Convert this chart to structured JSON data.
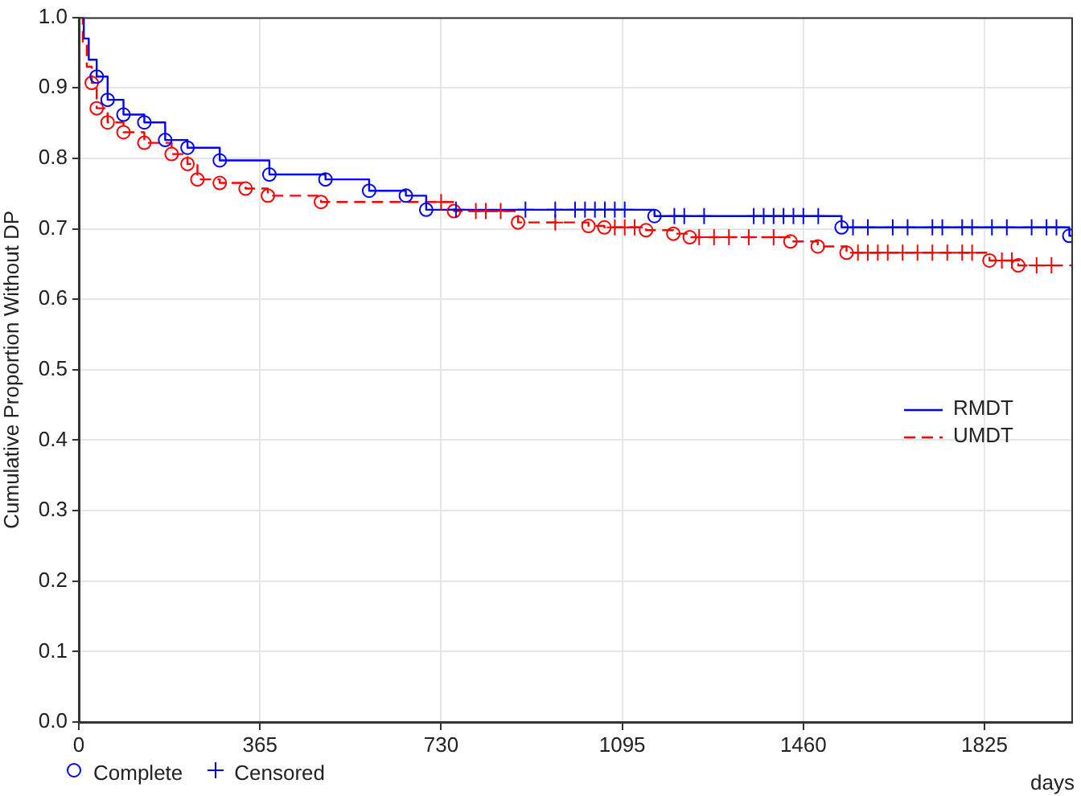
{
  "chart_data": {
    "type": "step",
    "xlabel": "days",
    "ylabel": "Cumulative Proportion Without DP",
    "xlim": [
      0,
      2000
    ],
    "xticks": [
      0,
      365,
      730,
      1095,
      1460,
      1825
    ],
    "ylim": [
      0,
      1
    ],
    "yticks": [
      {
        "value": 0,
        "label": "0.0"
      },
      {
        "value": 0.1,
        "label": "0.1"
      },
      {
        "value": 0.2,
        "label": "0.2"
      },
      {
        "value": 0.3,
        "label": "0.3"
      },
      {
        "value": 0.4,
        "label": "0.4"
      },
      {
        "value": 0.5,
        "label": "0.5"
      },
      {
        "value": 0.6,
        "label": "0.6"
      },
      {
        "value": 0.7,
        "label": "0.7"
      },
      {
        "value": 0.8,
        "label": "0.8"
      },
      {
        "value": 0.9,
        "label": "0.9"
      },
      {
        "value": 1,
        "label": "1.0"
      }
    ],
    "grid": true,
    "legend": "right",
    "series": [
      {
        "name": "RMDT",
        "color": "#0000ff",
        "line_style": "solid",
        "marker": "none",
        "x": [
          0,
          10,
          20,
          36,
          58,
          90,
          132,
          174,
          219,
          284,
          384,
          497,
          585,
          659,
          700,
          1160,
          1537,
          1996,
          2000
        ],
        "values": [
          1,
          0.97,
          0.94,
          0.916,
          0.883,
          0.862,
          0.851,
          0.826,
          0.815,
          0.797,
          0.777,
          0.77,
          0.754,
          0.747,
          0.727,
          0.718,
          0.702,
          0.69,
          0.69
        ]
      },
      {
        "name": "UMDT",
        "color": "#ff0000",
        "line_style": "dashed",
        "marker": "none",
        "x": [
          0,
          8,
          16,
          26,
          36,
          58,
          90,
          132,
          187,
          219,
          239,
          284,
          336,
          381,
          488,
          756,
          885,
          1027,
          1059,
          1143,
          1198,
          1231,
          1434,
          1489,
          1547,
          1835,
          1893,
          2000
        ],
        "values": [
          1,
          0.96,
          0.93,
          0.907,
          0.871,
          0.851,
          0.837,
          0.822,
          0.806,
          0.792,
          0.77,
          0.765,
          0.757,
          0.747,
          0.738,
          0.725,
          0.709,
          0.704,
          0.702,
          0.698,
          0.693,
          0.688,
          0.682,
          0.675,
          0.666,
          0.655,
          0.648,
          0.648
        ]
      },
      {
        "name": "Complete",
        "type": "scatter",
        "color": "#0000ff",
        "marker": "circle",
        "x": [
          36,
          58,
          90,
          132,
          174,
          219,
          284,
          384,
          497,
          585,
          659,
          700,
          1160,
          1537,
          1996
        ],
        "values": [
          0.916,
          0.883,
          0.862,
          0.851,
          0.826,
          0.815,
          0.797,
          0.777,
          0.77,
          0.754,
          0.747,
          0.727,
          0.718,
          0.702,
          0.69
        ]
      },
      {
        "name": "Censored",
        "type": "scatter",
        "color": "#0000ff",
        "marker": "cross",
        "x": [
          760,
          900,
          960,
          1000,
          1020,
          1040,
          1060,
          1080,
          1100,
          1200,
          1220,
          1260,
          1360,
          1380,
          1400,
          1420,
          1440,
          1460,
          1490,
          1560,
          1590,
          1640,
          1670,
          1720,
          1740,
          1780,
          1800,
          1840,
          1870,
          1920,
          1950,
          1970
        ],
        "values": [
          0.727,
          0.727,
          0.727,
          0.727,
          0.727,
          0.727,
          0.727,
          0.727,
          0.727,
          0.718,
          0.718,
          0.718,
          0.718,
          0.718,
          0.718,
          0.718,
          0.718,
          0.718,
          0.718,
          0.702,
          0.702,
          0.702,
          0.702,
          0.702,
          0.702,
          0.702,
          0.702,
          0.702,
          0.702,
          0.702,
          0.702,
          0.702
        ]
      },
      {
        "type": "scatter",
        "color": "#ff0000",
        "marker": "circle",
        "x": [
          26,
          36,
          58,
          90,
          132,
          187,
          219,
          239,
          284,
          336,
          381,
          488,
          756,
          885,
          1027,
          1059,
          1143,
          1198,
          1231,
          1434,
          1489,
          1547,
          1835,
          1893
        ],
        "values": [
          0.907,
          0.871,
          0.851,
          0.837,
          0.822,
          0.806,
          0.792,
          0.77,
          0.765,
          0.757,
          0.747,
          0.738,
          0.725,
          0.709,
          0.704,
          0.702,
          0.698,
          0.693,
          0.688,
          0.682,
          0.675,
          0.666,
          0.655,
          0.648
        ]
      },
      {
        "type": "scatter",
        "color": "#ff0000",
        "marker": "cross",
        "x": [
          730,
          800,
          820,
          850,
          960,
          1080,
          1100,
          1120,
          1250,
          1280,
          1310,
          1350,
          1400,
          1570,
          1590,
          1610,
          1630,
          1660,
          1690,
          1720,
          1750,
          1780,
          1800,
          1860,
          1880,
          1930,
          1960
        ],
        "values": [
          0.738,
          0.725,
          0.725,
          0.725,
          0.709,
          0.702,
          0.702,
          0.702,
          0.688,
          0.688,
          0.688,
          0.688,
          0.688,
          0.666,
          0.666,
          0.666,
          0.666,
          0.666,
          0.666,
          0.666,
          0.666,
          0.666,
          0.666,
          0.655,
          0.655,
          0.648,
          0.648
        ]
      }
    ]
  }
}
